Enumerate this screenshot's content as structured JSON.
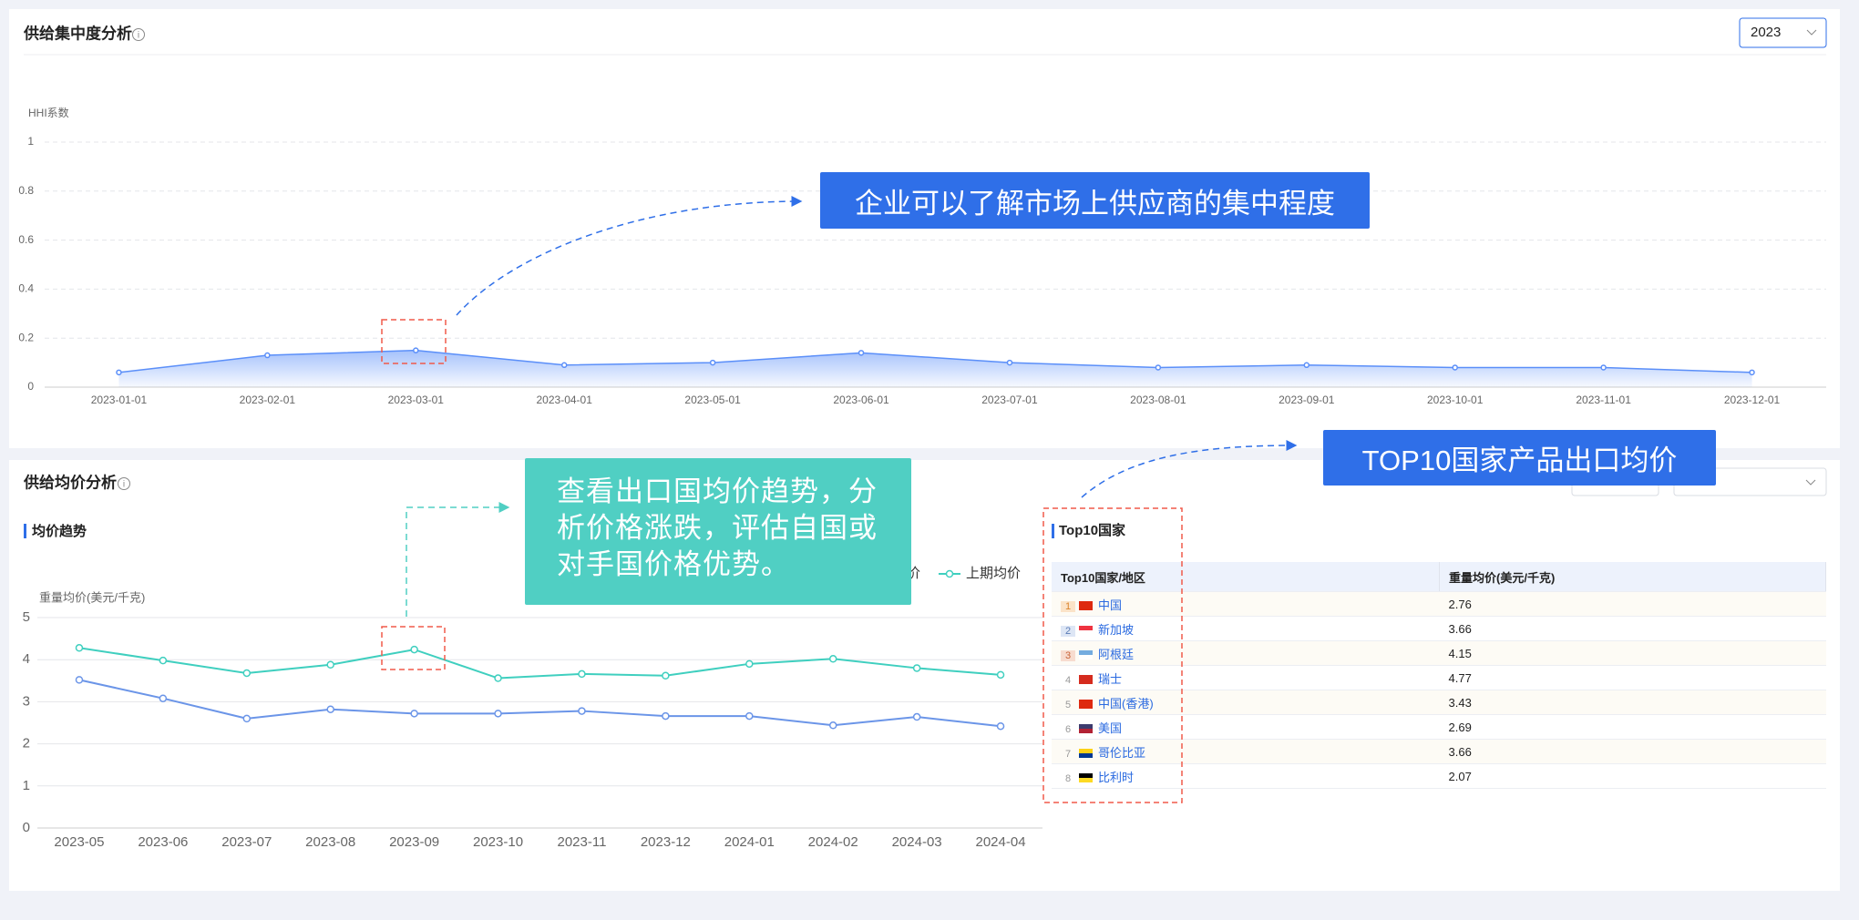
{
  "chart_data": [
    {
      "type": "area",
      "title": "供给集中度分析",
      "y_label": "HHI系数",
      "categories": [
        "2023-01-01",
        "2023-02-01",
        "2023-03-01",
        "2023-04-01",
        "2023-05-01",
        "2023-06-01",
        "2023-07-01",
        "2023-08-01",
        "2023-09-01",
        "2023-10-01",
        "2023-11-01",
        "2023-12-01"
      ],
      "values": [
        0.06,
        0.13,
        0.15,
        0.09,
        0.1,
        0.14,
        0.1,
        0.08,
        0.09,
        0.08,
        0.08,
        0.06
      ],
      "color": "#5b8ff9",
      "ylim": [
        0,
        1
      ],
      "yticks": [
        0,
        0.2,
        0.4,
        0.6,
        0.8,
        1
      ],
      "grid": true
    },
    {
      "type": "line",
      "title": "均价趋势",
      "y_label": "重量均价(美元/千克)",
      "categories": [
        "2023-05",
        "2023-06",
        "2023-07",
        "2023-08",
        "2023-09",
        "2023-10",
        "2023-11",
        "2023-12",
        "2024-01",
        "2024-02",
        "2024-03",
        "2024-04"
      ],
      "series": [
        {
          "name": "价",
          "color": "#6b95e8",
          "values": [
            3.52,
            3.08,
            2.6,
            2.82,
            2.72,
            2.72,
            2.78,
            2.66,
            2.66,
            2.44,
            2.64,
            2.42
          ]
        },
        {
          "name": "上期均价",
          "color": "#3fcfbf",
          "values": [
            4.28,
            3.98,
            3.68,
            3.88,
            4.24,
            3.56,
            3.66,
            3.62,
            3.9,
            4.02,
            3.8,
            3.64
          ]
        }
      ],
      "ylim": [
        0,
        5
      ],
      "yticks": [
        0,
        1,
        2,
        3,
        4,
        5
      ],
      "grid": true
    }
  ],
  "year_select": "2023",
  "price_panel_title": "供给均价分析",
  "top10": {
    "title": "Top10国家",
    "columns": [
      "Top10国家/地区",
      "重量均价(美元/千克)"
    ],
    "rows": [
      [
        "1",
        "中国",
        "2.76"
      ],
      [
        "2",
        "新加坡",
        "3.66"
      ],
      [
        "3",
        "阿根廷",
        "4.15"
      ],
      [
        "4",
        "瑞士",
        "4.77"
      ],
      [
        "5",
        "中国(香港)",
        "3.43"
      ],
      [
        "6",
        "美国",
        "2.69"
      ],
      [
        "7",
        "哥伦比亚",
        "3.66"
      ],
      [
        "8",
        "比利时",
        "2.07"
      ]
    ]
  },
  "annotations": [
    "企业可以了解市场上供应商的集中程度",
    "查看出口国均价趋势，分析价格涨跌，评估自国或对手国价格优势。",
    "TOP10国家产品出口均价"
  ]
}
